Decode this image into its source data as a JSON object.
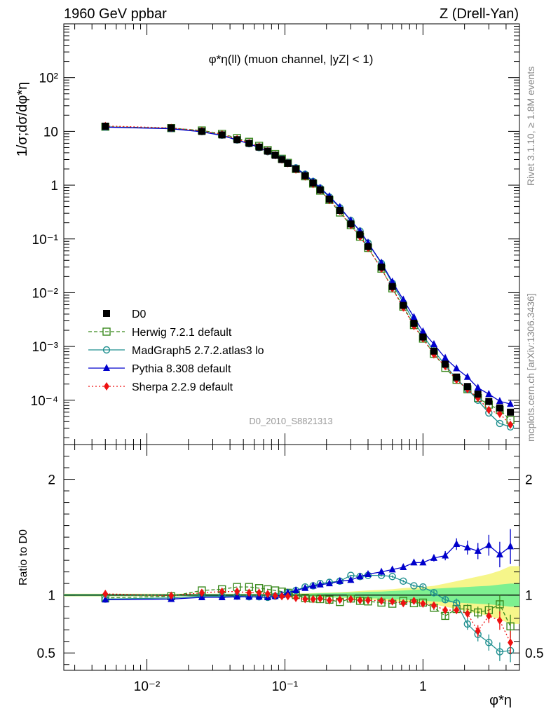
{
  "header": {
    "left": "1960 GeV ppbar",
    "right": "Z (Drell-Yan)"
  },
  "side_labels": {
    "rivet": "Rivet 3.1.10, ≥ 1.8M events",
    "mcplots": "mcplots.cern.ch [arXiv:1306.3436]"
  },
  "watermark": "D0_2010_S8821313",
  "colors": {
    "data": "#000000",
    "herwig": "#3a8a1e",
    "madgraph": "#1f8f8f",
    "pythia": "#0000cc",
    "sherpa": "#ee1111",
    "band_inner": "#7ef090",
    "band_outer": "#f6f68a"
  },
  "chart_data": [
    {
      "type": "scatter",
      "panel": "main",
      "title": "φ*η(ll) (muon channel, |yZ| < 1)",
      "ylabel": "1/σ;dσ/dφ*η",
      "xscale": "log",
      "yscale": "log",
      "xlim": [
        0.0025,
        5
      ],
      "ylim": [
        1.5e-05,
        1000
      ],
      "yticks": [
        0.0001,
        0.001,
        0.01,
        0.1,
        1,
        10,
        100
      ],
      "ytick_labels": [
        "10⁻⁴",
        "10⁻³",
        "10⁻²",
        "10⁻¹",
        "1",
        "10",
        "10²"
      ],
      "legend_position": "lower-left",
      "x": [
        0.005,
        0.015,
        0.025,
        0.035,
        0.045,
        0.055,
        0.065,
        0.075,
        0.085,
        0.095,
        0.105,
        0.12,
        0.14,
        0.16,
        0.18,
        0.21,
        0.25,
        0.3,
        0.35,
        0.4,
        0.5,
        0.6,
        0.72,
        0.86,
        1.0,
        1.2,
        1.45,
        1.75,
        2.1,
        2.5,
        3.0,
        3.6,
        4.3
      ],
      "series": [
        {
          "name": "D0",
          "style": "data",
          "values": [
            12.5,
            11.6,
            10.0,
            8.6,
            7.0,
            6.0,
            5.1,
            4.3,
            3.6,
            3.0,
            2.55,
            2.0,
            1.5,
            1.1,
            0.82,
            0.55,
            0.34,
            0.19,
            0.12,
            0.072,
            0.03,
            0.013,
            0.0058,
            0.0027,
            0.0015,
            0.00082,
            0.00047,
            0.00027,
            0.00018,
            0.00013,
            9.5e-05,
            7.2e-05,
            6e-05
          ]
        },
        {
          "name": "Herwig 7.2.1 default",
          "style": "herwig",
          "values": [
            12.2,
            11.5,
            10.4,
            9.0,
            7.5,
            6.4,
            5.4,
            4.5,
            3.8,
            3.1,
            2.6,
            2.0,
            1.46,
            1.07,
            0.79,
            0.53,
            0.31,
            0.18,
            0.11,
            0.068,
            0.028,
            0.012,
            0.0055,
            0.0025,
            0.0014,
            0.00073,
            0.0004,
            0.00024,
            0.00016,
            0.00011,
            8.3e-05,
            6.6e-05,
            4.3e-05
          ]
        },
        {
          "name": "MadGraph5 2.7.2.atlas3 lo",
          "style": "madgraph",
          "values": [
            12.1,
            11.3,
            9.9,
            8.5,
            6.9,
            5.9,
            5.0,
            4.2,
            3.6,
            3.1,
            2.6,
            2.1,
            1.6,
            1.17,
            0.88,
            0.6,
            0.38,
            0.22,
            0.14,
            0.084,
            0.035,
            0.015,
            0.0065,
            0.0029,
            0.0016,
            0.00083,
            0.00045,
            0.00025,
            0.00016,
            0.0001,
            5.8e-05,
            3.7e-05,
            3.2e-05
          ]
        },
        {
          "name": "Pythia 8.308 default",
          "style": "pythia",
          "values": [
            12.0,
            11.2,
            9.8,
            8.4,
            6.9,
            5.9,
            5.0,
            4.2,
            3.5,
            3.0,
            2.6,
            2.05,
            1.57,
            1.17,
            0.89,
            0.62,
            0.39,
            0.22,
            0.14,
            0.085,
            0.036,
            0.016,
            0.0074,
            0.0035,
            0.0019,
            0.0011,
            0.00061,
            0.00039,
            0.00027,
            0.00017,
            0.00013,
            9.6e-05,
            8.5e-05
          ]
        },
        {
          "name": "Sherpa 2.2.9 default",
          "style": "sherpa",
          "values": [
            12.6,
            11.6,
            10.2,
            8.8,
            7.2,
            6.1,
            5.2,
            4.3,
            3.6,
            3.0,
            2.55,
            1.95,
            1.45,
            1.05,
            0.8,
            0.53,
            0.33,
            0.18,
            0.11,
            0.068,
            0.028,
            0.012,
            0.0053,
            0.0024,
            0.0014,
            0.00071,
            0.00043,
            0.00024,
            0.00016,
            0.00011,
            6.6e-05,
            5.6e-05,
            3.5e-05
          ]
        }
      ]
    },
    {
      "type": "line",
      "panel": "ratio",
      "ylabel": "Ratio to D0",
      "xlabel": "φ*η",
      "xscale": "log",
      "xlim": [
        0.0025,
        5
      ],
      "ylim": [
        0.35,
        2.3
      ],
      "yticks": [
        0.5,
        1,
        2
      ],
      "xticks": [
        0.01,
        0.1,
        1
      ],
      "xtick_labels": [
        "10⁻²",
        "10⁻¹",
        "1"
      ],
      "x": [
        0.005,
        0.015,
        0.025,
        0.035,
        0.045,
        0.055,
        0.065,
        0.075,
        0.085,
        0.095,
        0.105,
        0.12,
        0.14,
        0.16,
        0.18,
        0.21,
        0.25,
        0.3,
        0.35,
        0.4,
        0.5,
        0.6,
        0.72,
        0.86,
        1.0,
        1.2,
        1.45,
        1.75,
        2.1,
        2.5,
        3.0,
        3.6,
        4.3
      ],
      "band_inner_halfwidth": [
        0.01,
        0.01,
        0.01,
        0.01,
        0.01,
        0.01,
        0.01,
        0.01,
        0.01,
        0.01,
        0.01,
        0.012,
        0.012,
        0.014,
        0.016,
        0.018,
        0.02,
        0.022,
        0.025,
        0.028,
        0.03,
        0.035,
        0.04,
        0.045,
        0.05,
        0.055,
        0.06,
        0.065,
        0.07,
        0.075,
        0.08,
        0.09,
        0.1
      ],
      "band_outer_halfwidth": [
        0.012,
        0.012,
        0.012,
        0.012,
        0.012,
        0.012,
        0.012,
        0.012,
        0.012,
        0.012,
        0.012,
        0.015,
        0.015,
        0.018,
        0.02,
        0.022,
        0.025,
        0.03,
        0.035,
        0.04,
        0.045,
        0.05,
        0.06,
        0.065,
        0.07,
        0.08,
        0.1,
        0.12,
        0.14,
        0.16,
        0.18,
        0.21,
        0.25
      ],
      "series": [
        {
          "name": "Herwig 7.2.1 default",
          "style": "herwig",
          "values": [
            0.975,
            0.99,
            1.04,
            1.05,
            1.07,
            1.07,
            1.06,
            1.05,
            1.04,
            1.03,
            1.02,
            1.0,
            0.975,
            0.97,
            0.965,
            0.96,
            0.94,
            0.97,
            0.95,
            0.945,
            0.935,
            0.925,
            0.95,
            0.93,
            0.935,
            0.89,
            0.82,
            0.88,
            0.88,
            0.85,
            0.87,
            0.92,
            0.73
          ],
          "errors": [
            0.005,
            0.005,
            0.005,
            0.005,
            0.005,
            0.005,
            0.005,
            0.005,
            0.005,
            0.005,
            0.005,
            0.005,
            0.005,
            0.005,
            0.005,
            0.005,
            0.005,
            0.005,
            0.005,
            0.005,
            0.005,
            0.01,
            0.01,
            0.01,
            0.015,
            0.02,
            0.03,
            0.03,
            0.04,
            0.05,
            0.06,
            0.08,
            0.1
          ]
        },
        {
          "name": "MadGraph5 2.7.2.atlas3 lo",
          "style": "madgraph",
          "values": [
            0.965,
            0.975,
            0.99,
            0.99,
            0.99,
            0.985,
            0.985,
            0.98,
            0.99,
            1.0,
            1.02,
            1.04,
            1.07,
            1.08,
            1.1,
            1.11,
            1.12,
            1.17,
            1.16,
            1.17,
            1.17,
            1.16,
            1.12,
            1.08,
            1.07,
            1.02,
            0.96,
            0.93,
            0.75,
            0.66,
            0.59,
            0.51,
            0.52
          ],
          "errors": [
            0.005,
            0.005,
            0.005,
            0.005,
            0.005,
            0.005,
            0.005,
            0.005,
            0.005,
            0.005,
            0.005,
            0.005,
            0.005,
            0.005,
            0.005,
            0.005,
            0.005,
            0.005,
            0.005,
            0.005,
            0.01,
            0.01,
            0.01,
            0.01,
            0.02,
            0.02,
            0.03,
            0.04,
            0.05,
            0.06,
            0.07,
            0.08,
            0.1
          ]
        },
        {
          "name": "Pythia 8.308 default",
          "style": "pythia",
          "values": [
            0.96,
            0.965,
            0.98,
            0.98,
            0.985,
            0.985,
            0.985,
            0.98,
            0.99,
            1.0,
            1.02,
            1.04,
            1.06,
            1.08,
            1.09,
            1.1,
            1.12,
            1.13,
            1.16,
            1.18,
            1.2,
            1.22,
            1.24,
            1.28,
            1.28,
            1.32,
            1.34,
            1.44,
            1.41,
            1.38,
            1.43,
            1.35,
            1.42
          ],
          "errors": [
            0.005,
            0.005,
            0.005,
            0.005,
            0.005,
            0.005,
            0.005,
            0.005,
            0.005,
            0.005,
            0.005,
            0.005,
            0.005,
            0.005,
            0.005,
            0.005,
            0.005,
            0.005,
            0.01,
            0.01,
            0.01,
            0.01,
            0.02,
            0.02,
            0.02,
            0.03,
            0.04,
            0.05,
            0.06,
            0.07,
            0.09,
            0.11,
            0.15
          ]
        },
        {
          "name": "Sherpa 2.2.9 default",
          "style": "sherpa",
          "values": [
            1.01,
            0.995,
            1.02,
            1.03,
            1.03,
            1.02,
            1.02,
            1.01,
            0.995,
            0.99,
            0.99,
            0.975,
            0.965,
            0.965,
            0.97,
            0.955,
            0.96,
            0.965,
            0.955,
            0.955,
            0.95,
            0.945,
            0.93,
            0.95,
            0.925,
            0.91,
            0.87,
            0.87,
            0.84,
            0.69,
            0.82,
            0.78,
            0.59
          ],
          "errors": [
            0.005,
            0.005,
            0.005,
            0.005,
            0.005,
            0.005,
            0.005,
            0.005,
            0.005,
            0.005,
            0.005,
            0.005,
            0.005,
            0.005,
            0.005,
            0.005,
            0.005,
            0.005,
            0.005,
            0.005,
            0.005,
            0.01,
            0.01,
            0.01,
            0.015,
            0.02,
            0.02,
            0.03,
            0.04,
            0.05,
            0.06,
            0.08,
            0.1
          ]
        }
      ]
    }
  ]
}
